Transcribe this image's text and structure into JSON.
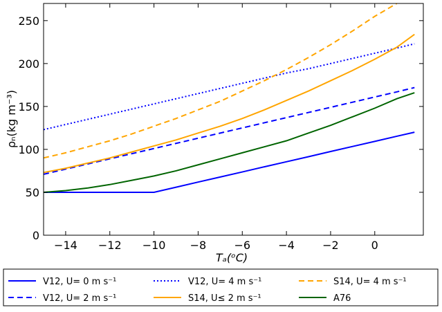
{
  "chart_data": {
    "type": "line",
    "x_label": "Tₐ(ᵒC)",
    "y_label": "ρₙ(kg m⁻³)",
    "x": [
      -15,
      -14,
      -13,
      -12,
      -11,
      -10,
      -9,
      -8,
      -7,
      -6,
      -5,
      -4,
      -3,
      -2,
      -1,
      0,
      1,
      1.8
    ],
    "series": [
      {
        "name": "V12, U= 0 m s⁻¹",
        "color": "#0000ff",
        "style": "solid",
        "values": [
          50,
          50,
          50,
          50,
          50,
          50,
          55.9,
          61.9,
          67.8,
          73.7,
          79.7,
          85.6,
          91.5,
          97.5,
          103.4,
          109.3,
          115.3,
          120
        ]
      },
      {
        "name": "V12, U= 2 m s⁻¹",
        "color": "#0000ff",
        "style": "dashed",
        "values": [
          71,
          77,
          83,
          89,
          95,
          101,
          107,
          113,
          119,
          125,
          131,
          137,
          143,
          149,
          155,
          161,
          167,
          172
        ]
      },
      {
        "name": "V12, U= 4 m s⁻¹",
        "color": "#0000ff",
        "style": "dotted",
        "values": [
          123,
          129,
          135,
          141,
          147,
          153,
          159,
          165,
          171,
          177,
          183,
          189,
          194,
          200,
          206,
          212,
          218,
          223
        ]
      },
      {
        "name": "S14, U≤ 2 m s⁻¹",
        "color": "#ffa500",
        "style": "solid",
        "values": [
          73,
          78,
          84,
          90,
          97,
          104,
          111,
          119,
          127,
          136,
          146,
          157,
          168,
          180,
          192,
          205,
          219,
          234
        ]
      },
      {
        "name": "S14, U= 4 m s⁻¹",
        "color": "#ffa500",
        "style": "dashed",
        "values": [
          90,
          96,
          103,
          110,
          118,
          127,
          136,
          146,
          156,
          168,
          180,
          193,
          207,
          222,
          238,
          255,
          270,
          null
        ]
      },
      {
        "name": "A76",
        "color": "#006400",
        "style": "solid",
        "values": [
          50,
          52,
          55,
          59,
          64,
          69,
          75,
          82,
          89,
          96,
          103,
          110,
          119,
          128,
          138,
          148,
          159,
          166
        ]
      }
    ],
    "xlim": [
      -15,
      2.2
    ],
    "ylim": [
      0,
      270
    ],
    "xticks": [
      {
        "value": -14,
        "label": "−14"
      },
      {
        "value": -12,
        "label": "−12"
      },
      {
        "value": -10,
        "label": "−10"
      },
      {
        "value": -8,
        "label": "−8"
      },
      {
        "value": -6,
        "label": "−6"
      },
      {
        "value": -4,
        "label": "−4"
      },
      {
        "value": -2,
        "label": "−2"
      },
      0
    ],
    "yticks": [
      0,
      50,
      100,
      150,
      200,
      250
    ],
    "grid": false,
    "legend": "below"
  }
}
